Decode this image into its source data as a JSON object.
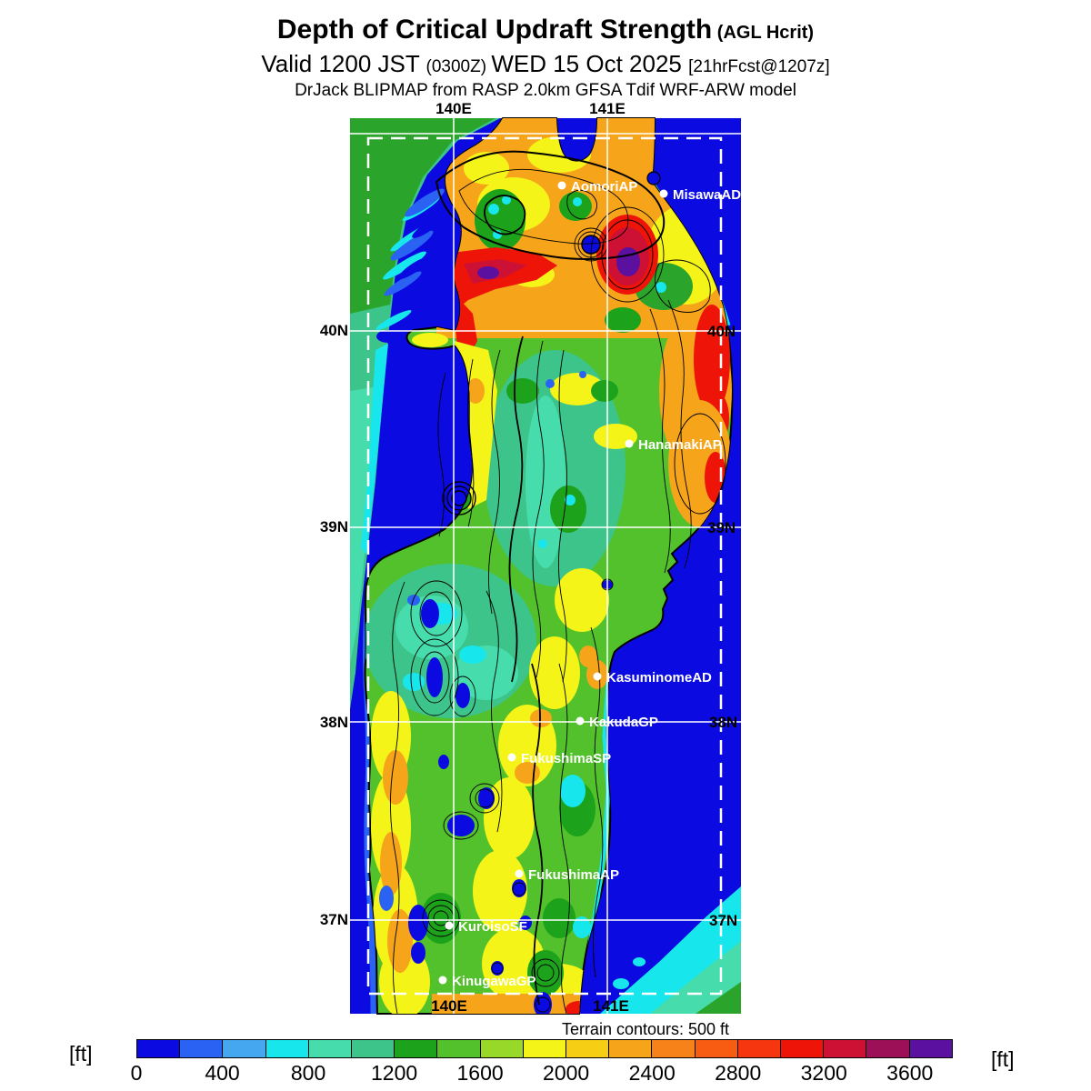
{
  "header": {
    "title": "Depth of Critical Updraft Strength",
    "title_suffix": " (AGL Hcrit)",
    "valid_prefix": "Valid 1200 JST ",
    "valid_zulu": "(0300Z) ",
    "valid_date": "WED 15 Oct 2025 ",
    "valid_fcst": "[21hrFcst@1207z]",
    "model_line": "DrJack BLIPMAP from RASP 2.0km GFSA Tdif WRF-ARW model"
  },
  "map": {
    "lon_top": [
      "140E",
      "141E"
    ],
    "lon_bottom": [
      "140E",
      "141E"
    ],
    "lat_left": [
      "40N",
      "39N",
      "38N",
      "37N"
    ],
    "lat_right": [
      "40N",
      "39N",
      "38N",
      "37N"
    ],
    "stations": [
      {
        "name": "AomoriAP"
      },
      {
        "name": "MisawaAD"
      },
      {
        "name": "HanamakiAP"
      },
      {
        "name": "KasuminomeAD"
      },
      {
        "name": "KakudaGP"
      },
      {
        "name": "FukushimaSP"
      },
      {
        "name": "FukushimaAP"
      },
      {
        "name": "KuroisoSF"
      },
      {
        "name": "KinugawaGP"
      }
    ],
    "ocean_color": "#0b0be1"
  },
  "colorbar": {
    "unit_left": "[ft]",
    "unit_right": "[ft]",
    "note": "Terrain contours: 500 ft",
    "ticks": [
      "0",
      "400",
      "800",
      "1200",
      "1600",
      "2000",
      "2400",
      "2800",
      "3200",
      "3600"
    ],
    "segment_step_ft": 200,
    "range_ft": [
      0,
      3800
    ],
    "segments": [
      "#0b0be1",
      "#2a62f4",
      "#45a7ef",
      "#17e7ec",
      "#46dcac",
      "#3cc48a",
      "#1da21b",
      "#52c12c",
      "#97d829",
      "#f4f418",
      "#f6cf15",
      "#f6a41a",
      "#f8821a",
      "#f75c12",
      "#f6360e",
      "#ee1407",
      "#cc1134",
      "#9c1057",
      "#5c10a0"
    ]
  }
}
